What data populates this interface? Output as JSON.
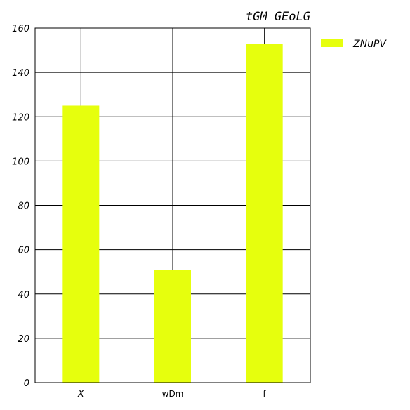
{
  "chart_data": {
    "type": "bar",
    "title": "tGM GEoLG",
    "categories": [
      "X",
      "wDm",
      "f"
    ],
    "series": [
      {
        "name": "ZNuPV",
        "values": [
          125,
          51,
          153
        ]
      }
    ],
    "ylim": [
      0,
      160
    ],
    "yticks": [
      0,
      20,
      40,
      60,
      80,
      100,
      120,
      140,
      160
    ],
    "grid": true,
    "legend_position": "top-right-outside",
    "colors": {
      "bar": "#e6ff0d",
      "grid": "#000000",
      "axis": "#000000"
    }
  }
}
